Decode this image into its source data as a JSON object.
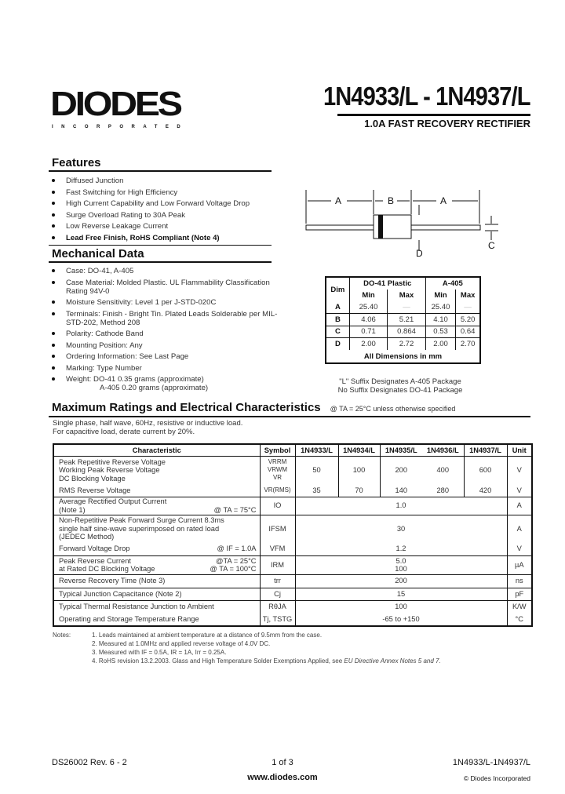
{
  "header": {
    "logo_text": "DIODES",
    "logo_sub": "INCORPORATED",
    "title": "1N4933/L - 1N4937/L",
    "subtitle": "1.0A FAST RECOVERY RECTIFIER"
  },
  "features": {
    "heading": "Features",
    "items": [
      "Diffused Junction",
      "Fast Switching for High Efficiency",
      "High Current Capability and Low Forward Voltage Drop",
      "Surge Overload Rating to 30A Peak",
      "Low Reverse Leakage Current",
      "Lead Free Finish, RoHS Compliant (Note 4)"
    ]
  },
  "mechanical": {
    "heading": "Mechanical Data",
    "items": [
      "Case: DO-41, A-405",
      "Case Material: Molded Plastic.  UL Flammability Classification Rating 94V-0",
      "Moisture Sensitivity:  Level 1 per J-STD-020C",
      "Terminals: Finish - Bright Tin.  Plated Leads Solderable per MIL-STD-202, Method 208",
      "Polarity: Cathode Band",
      "Mounting Position: Any",
      "Ordering Information:  See Last Page",
      "Marking: Type Number",
      "Weight:  DO-41 0.35 grams (approximate)"
    ],
    "weight_line2": "A-405 0.20 grams (approximate)"
  },
  "diagram": {
    "labels": {
      "a": "A",
      "b": "B",
      "c": "C",
      "d": "D"
    }
  },
  "dim_table": {
    "dim": "Dim",
    "pkg1": "DO-41 Plastic",
    "pkg2": "A-405",
    "min": "Min",
    "max": "Max",
    "rows": [
      [
        "A",
        "25.40",
        "—",
        "25.40",
        "—"
      ],
      [
        "B",
        "4.06",
        "5.21",
        "4.10",
        "5.20"
      ],
      [
        "C",
        "0.71",
        "0.864",
        "0.53",
        "0.64"
      ],
      [
        "D",
        "2.00",
        "2.72",
        "2.00",
        "2.70"
      ]
    ],
    "footer": "All Dimensions in mm"
  },
  "suffix": {
    "line1": "\"L\" Suffix Designates A-405 Package",
    "line2": "No  Suffix Designates DO-41 Package"
  },
  "ratings": {
    "heading": "Maximum Ratings and Electrical Characteristics",
    "condition": "@ TA = 25°C unless otherwise specified",
    "note1": "Single phase, half wave, 60Hz, resistive or inductive load.",
    "note2": "For capacitive load, derate current by 20%.",
    "headers": [
      "Characteristic",
      "Symbol",
      "1N4933/L",
      "1N4934/L",
      "1N4935/L",
      "1N4936/L",
      "1N4937/L",
      "Unit"
    ],
    "vr": {
      "char": [
        "Peak Repetitive Reverse Voltage",
        "Working Peak Reverse Voltage",
        "DC Blocking Voltage"
      ],
      "sym": [
        "VRRM",
        "VRWM",
        "VR"
      ],
      "values": [
        "50",
        "100",
        "200",
        "400",
        "600"
      ],
      "unit": "V"
    },
    "rms": {
      "char": "RMS Reverse Voltage",
      "sym": "VR(RMS)",
      "values": [
        "35",
        "70",
        "140",
        "280",
        "420"
      ],
      "unit": "V"
    },
    "io": {
      "char": [
        "Average Rectified Output Current",
        "(Note 1)"
      ],
      "cond": "@ TA = 75°C",
      "sym": "IO",
      "value": "1.0",
      "unit": "A"
    },
    "ifsm": {
      "char": [
        "Non-Repetitive Peak Forward Surge Current 8.3ms",
        "single half sine-wave superimposed on rated load",
        "(JEDEC Method)"
      ],
      "sym": "IFSM",
      "value": "30",
      "unit": "A"
    },
    "vfm": {
      "char": "Forward Voltage Drop",
      "cond": "@ IF = 1.0A",
      "sym": "VFM",
      "value": "1.2",
      "unit": "V"
    },
    "irm": {
      "char": [
        "Peak Reverse Current",
        "at Rated DC Blocking Voltage"
      ],
      "cond": [
        "@TA =  25°C",
        "@ TA = 100°C"
      ],
      "sym": "IRM",
      "values": [
        "5.0",
        "100"
      ],
      "unit": "µA"
    },
    "trr": {
      "char": "Reverse Recovery Time (Note 3)",
      "sym": "trr",
      "value": "200",
      "unit": "ns"
    },
    "cj": {
      "char": "Typical Junction Capacitance (Note 2)",
      "sym": "Cj",
      "value": "15",
      "unit": "pF"
    },
    "rth": {
      "char": "Typical Thermal Resistance Junction to Ambient",
      "sym": "RθJA",
      "value": "100",
      "unit": "K/W"
    },
    "temp": {
      "char": "Operating and Storage Temperature Range",
      "sym": "Tj, TSTG",
      "value": "-65 to +150",
      "unit": "°C"
    }
  },
  "notes": {
    "label": "Notes:",
    "items": [
      "1.  Leads maintained at ambient temperature at a distance of 9.5mm from the case.",
      "2.  Measured at 1.0MHz and applied reverse voltage of 4.0V DC.",
      "3.  Measured with IF = 0.5A, IR = 1A, Irr = 0.25A.",
      "4.  RoHS revision 13.2.2003.  Glass and High Temperature Solder Exemptions Applied, see "
    ],
    "note4_italic": "EU Directive Annex Notes 5 and 7."
  },
  "footer": {
    "doc": "DS26002 Rev. 6 - 2",
    "page": "1 of 3",
    "url": "www.diodes.com",
    "part": "1N4933/L-1N4937/L",
    "copyright": "© Diodes Incorporated"
  }
}
